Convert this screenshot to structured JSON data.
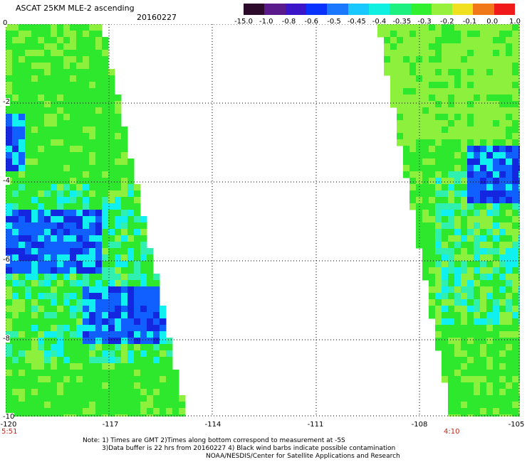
{
  "header": {
    "title": "ASCAT 25KM MLE-2 ascending",
    "date": "20160227"
  },
  "colorbar": {
    "labels": [
      "-15.0",
      "-1.0",
      "-0.8",
      "-0.6",
      "-0.5",
      "-0.45",
      "-0.4",
      "-0.35",
      "-0.3",
      "-0.2",
      "-0.1",
      "0.0",
      "1.0"
    ],
    "colors": [
      "#2b0a2b",
      "#5a1a8c",
      "#3a16c8",
      "#0a32ff",
      "#1a78ff",
      "#18c8ff",
      "#10f0e0",
      "#1ef080",
      "#30f030",
      "#96f03c",
      "#f0e020",
      "#f07818",
      "#f01a1a"
    ]
  },
  "axes": {
    "y_ticks": [
      "0",
      "-2",
      "-4",
      "-6",
      "-8",
      "-10"
    ],
    "x_ticks": [
      "-120",
      "-117",
      "-114",
      "-111",
      "-108",
      "-105"
    ],
    "x_unit": "longitude",
    "y_unit": "latitude"
  },
  "times": {
    "left": "5:51",
    "right": "4:10"
  },
  "notes": {
    "line1": "Note: 1) Times are GMT 2)Times along bottom correspond to measurement at -5S",
    "line2": "3)Data buffer is 22 hrs from 20160227 4) Black wind barbs indicate possible contamination",
    "line3": "NOAA/NESDIS/Center for Satellite Applications and Research"
  },
  "swath_colors": {
    "green": "#2ee82e",
    "lime": "#8cf03c",
    "cyan": "#10f0f0",
    "aqua": "#30f0b0",
    "blue": "#1060ff",
    "darkblue": "#1426e0"
  }
}
